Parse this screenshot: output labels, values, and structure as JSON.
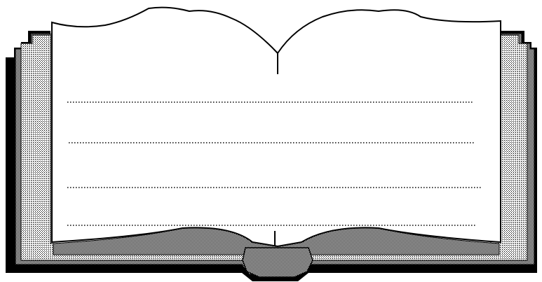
{
  "illustration": {
    "subject": "open-book-icon",
    "pages": {
      "ruled_line_count": 4,
      "line_style": "dotted"
    },
    "colors": {
      "background": "#ffffff",
      "ink": "#000000",
      "page": "#ffffff",
      "stack_shade": "#8a8a8a",
      "stack_light": "#cfcfcf"
    }
  }
}
